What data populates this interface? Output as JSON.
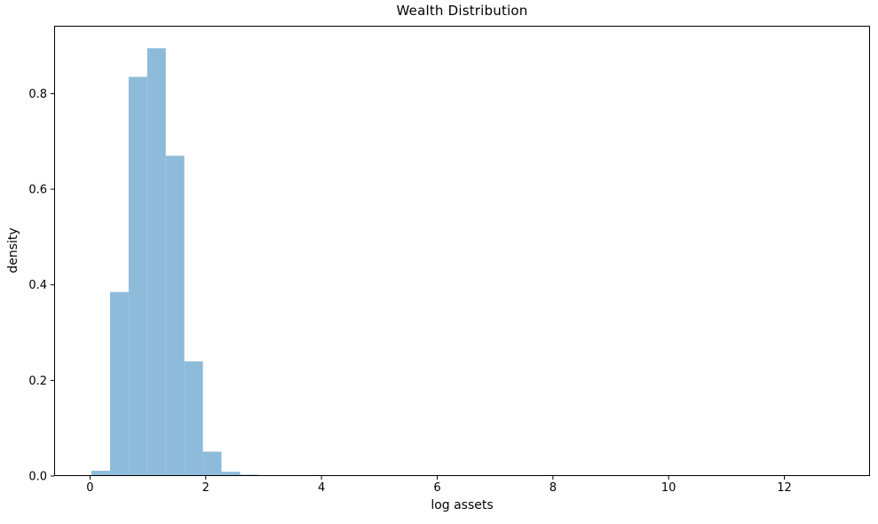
{
  "chart_data": {
    "type": "bar",
    "subtype": "histogram",
    "title": "Wealth Distribution",
    "xlabel": "log assets",
    "ylabel": "density",
    "bin_edges": [
      0.025,
      0.346,
      0.667,
      0.988,
      1.309,
      1.63,
      1.951,
      2.272,
      2.593,
      2.914
    ],
    "densities": [
      0.011,
      0.385,
      0.835,
      0.895,
      0.67,
      0.24,
      0.051,
      0.009,
      0.003
    ],
    "x_ticks": [
      0,
      2,
      4,
      6,
      8,
      10,
      12
    ],
    "y_ticks": [
      0,
      0.2,
      0.4,
      0.6,
      0.8
    ],
    "xlim": [
      -0.62,
      13.48
    ],
    "ylim": [
      0,
      0.942
    ],
    "grid": false,
    "legend": false,
    "colors": {
      "bar": "#8FBBDA",
      "axis": "#000000",
      "text": "#000000",
      "background": "#FFFFFF"
    }
  }
}
